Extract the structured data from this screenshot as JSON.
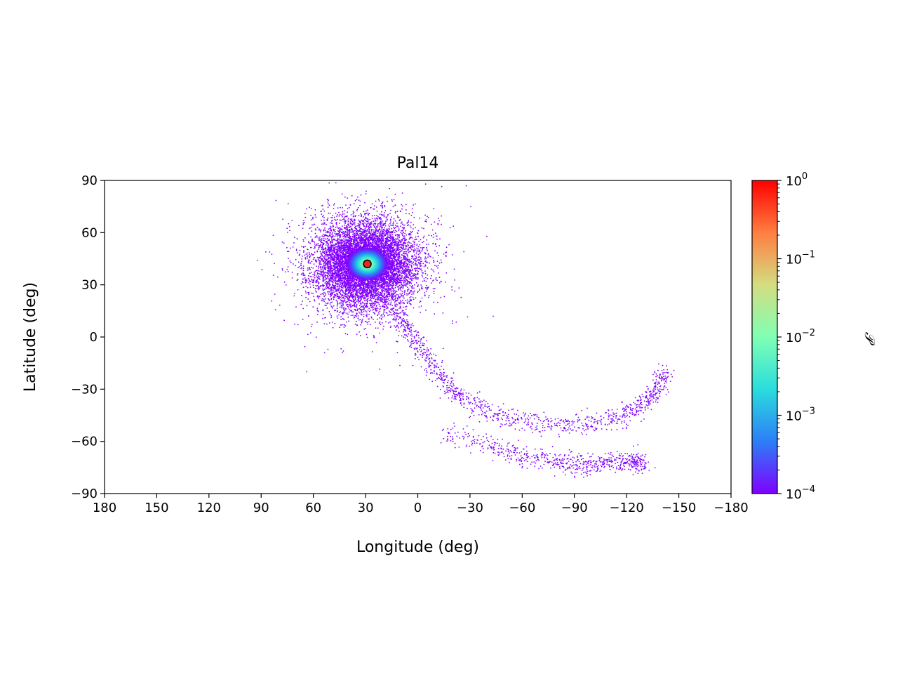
{
  "chart_data": {
    "type": "scatter",
    "title": "Pal14",
    "xlabel": "Longitude (deg)",
    "ylabel": "Latitude (deg)",
    "xlim": [
      180,
      -180
    ],
    "ylim": [
      -90,
      90
    ],
    "x_ticks": [
      180,
      150,
      120,
      90,
      60,
      30,
      0,
      -30,
      -60,
      -90,
      -120,
      -150,
      -180
    ],
    "x_tick_labels": [
      "180",
      "150",
      "120",
      "90",
      "60",
      "30",
      "0",
      "−30",
      "−60",
      "−90",
      "−120",
      "−150",
      "−180"
    ],
    "y_ticks": [
      90,
      60,
      30,
      0,
      -30,
      -60,
      -90
    ],
    "y_tick_labels": [
      "90",
      "60",
      "30",
      "0",
      "−30",
      "−60",
      "−90"
    ],
    "grid": false,
    "colorbar": {
      "label": "𝒫",
      "scale": "log",
      "colormap": "rainbow",
      "range": [
        0.0001,
        1
      ],
      "ticks": [
        1,
        0.1,
        0.01,
        0.001,
        0.0001
      ],
      "tick_bases": [
        "10",
        "10",
        "10",
        "10",
        "10"
      ],
      "tick_exponents": [
        "0",
        "−1",
        "−2",
        "−3",
        "−4"
      ],
      "colors": [
        "#8000ff",
        "#2c7ef7",
        "#2adddd",
        "#80ffb4",
        "#d4dd80",
        "#ff7e41",
        "#ff0000"
      ]
    },
    "cluster": {
      "center": [
        29,
        42
      ],
      "marker_color": "#e8281e"
    },
    "regions": [
      {
        "kind": "blob",
        "center": [
          30,
          42
        ],
        "spread": [
          14,
          12
        ],
        "count": 9000
      },
      {
        "kind": "stream",
        "count": 1100,
        "path": [
          [
            15,
            25
          ],
          [
            10,
            10
          ],
          [
            2,
            0
          ],
          [
            -5,
            -12
          ],
          [
            -15,
            -25
          ],
          [
            -25,
            -35
          ],
          [
            -40,
            -43
          ],
          [
            -60,
            -48
          ],
          [
            -80,
            -51
          ],
          [
            -100,
            -50
          ],
          [
            -118,
            -45
          ],
          [
            -130,
            -38
          ],
          [
            -138,
            -30
          ],
          [
            -142,
            -20
          ]
        ]
      },
      {
        "kind": "stream",
        "count": 650,
        "path": [
          [
            -15,
            -55
          ],
          [
            -40,
            -62
          ],
          [
            -60,
            -68
          ],
          [
            -80,
            -72
          ],
          [
            -95,
            -74
          ],
          [
            -110,
            -72
          ],
          [
            -122,
            -71
          ],
          [
            -130,
            -73
          ]
        ]
      }
    ]
  }
}
